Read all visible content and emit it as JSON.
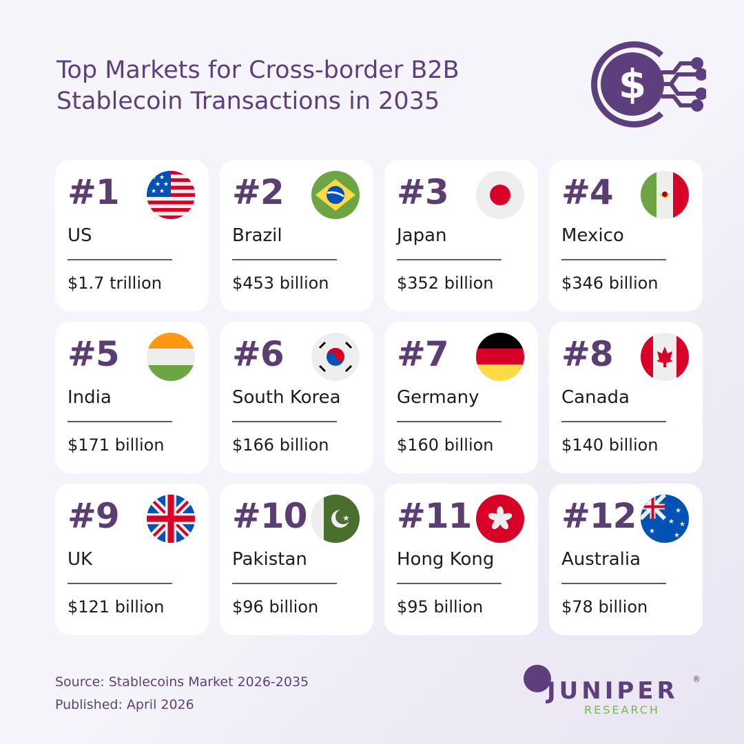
{
  "title": {
    "line1": "Top Markets for Cross-border B2B",
    "line2": "Stablecoin Transactions in 2035"
  },
  "hero_icon": "dollar-coin-network-icon",
  "colors": {
    "accent": "#5b3d73",
    "logo_green": "#76b84a",
    "card": "#ffffff"
  },
  "markets": [
    {
      "rank": "#1",
      "country": "US",
      "value": "$1.7 trillion",
      "flag": "us"
    },
    {
      "rank": "#2",
      "country": "Brazil",
      "value": "$453 billion",
      "flag": "br"
    },
    {
      "rank": "#3",
      "country": "Japan",
      "value": "$352 billion",
      "flag": "jp"
    },
    {
      "rank": "#4",
      "country": "Mexico",
      "value": "$346 billion",
      "flag": "mx"
    },
    {
      "rank": "#5",
      "country": "India",
      "value": "$171 billion",
      "flag": "in"
    },
    {
      "rank": "#6",
      "country": "South Korea",
      "value": "$166 billion",
      "flag": "kr"
    },
    {
      "rank": "#7",
      "country": "Germany",
      "value": "$160 billion",
      "flag": "de"
    },
    {
      "rank": "#8",
      "country": "Canada",
      "value": "$140 billion",
      "flag": "ca"
    },
    {
      "rank": "#9",
      "country": "UK",
      "value": "$121 billion",
      "flag": "gb"
    },
    {
      "rank": "#10",
      "country": "Pakistan",
      "value": "$96 billion",
      "flag": "pk"
    },
    {
      "rank": "#11",
      "country": "Hong Kong",
      "value": "$95 billion",
      "flag": "hk"
    },
    {
      "rank": "#12",
      "country": "Australia",
      "value": "$78 billion",
      "flag": "au"
    }
  ],
  "footer": {
    "source": "Source: Stablecoins Market 2026-2035",
    "published": "Published: April 2026"
  },
  "logo": {
    "name": "JUNIPER",
    "sub": "RESEARCH",
    "mark": "®"
  }
}
